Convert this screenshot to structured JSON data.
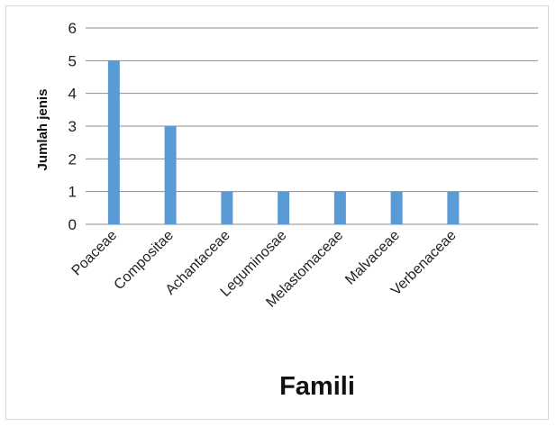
{
  "chart_data": {
    "type": "bar",
    "categories": [
      "Poaceae",
      "Compositae",
      "Achantaceae",
      "Leguminosae",
      "Melastomaceae",
      "Malvaceae",
      "Verbenaceae"
    ],
    "values": [
      5,
      3,
      1,
      1,
      1,
      1,
      1
    ],
    "xlabel": "Famili",
    "ylabel": "Jumlah jenis",
    "ylim": [
      0,
      6
    ],
    "yticks": [
      0,
      1,
      2,
      3,
      4,
      5,
      6
    ],
    "grid": true,
    "legend": "none",
    "bar_color": "#5b9bd5",
    "grid_color": "#8c8c8c"
  }
}
